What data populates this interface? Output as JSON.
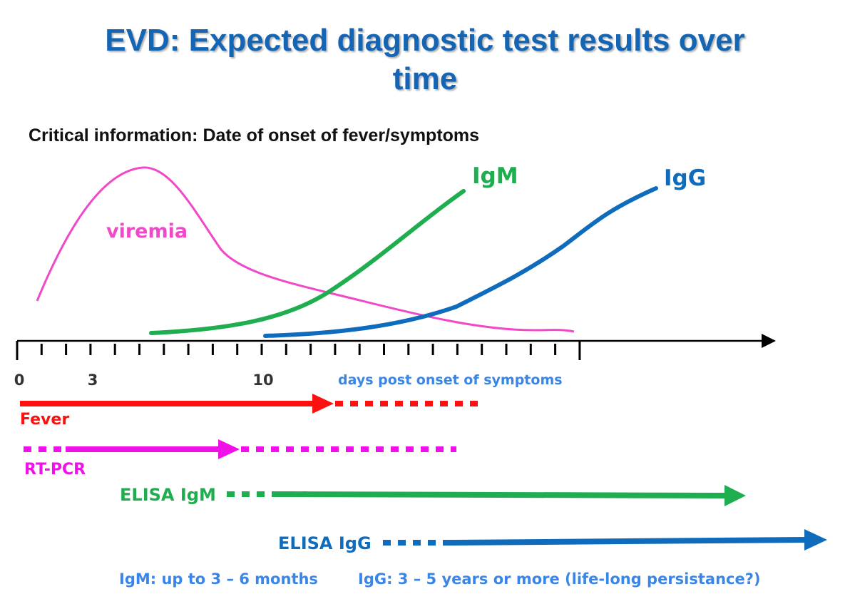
{
  "title": {
    "line1": "EVD: Expected diagnostic test results over",
    "line2": "time"
  },
  "subtitle": "Critical information: Date of onset of fever/symptoms",
  "colors": {
    "title": "#1565b5",
    "viremia": "#f048c8",
    "igm": "#1fae4f",
    "igg": "#0f6cbd",
    "fever": "#ff1010",
    "rtpcr": "#f010e8",
    "axis_label": "#3a86e8"
  },
  "axis": {
    "tick_labels": [
      "0",
      "3",
      "10"
    ],
    "caption": "days post onset of symptoms"
  },
  "curves": {
    "viremia": "viremia",
    "igm": "IgM",
    "igg": "IgG"
  },
  "tests": {
    "fever": "Fever",
    "rtpcr": "RT-PCR",
    "elisa_igm": "ELISA IgM",
    "elisa_igg": "ELISA IgG"
  },
  "footnotes": {
    "igm": "IgM: up to 3 – 6 months",
    "igg": "IgG: 3 – 5 years or more (life-long persistance?)"
  }
}
